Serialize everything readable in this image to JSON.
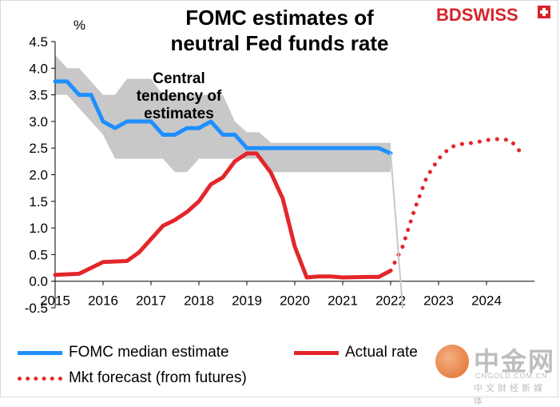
{
  "chart_data": {
    "type": "line",
    "title": "FOMC estimates of\nneutral Fed funds rate",
    "ylabel": "%",
    "ylim": [
      -0.5,
      4.5
    ],
    "yticks": [
      "-0.5",
      "0.0",
      "0.5",
      "1.0",
      "1.5",
      "2.0",
      "2.5",
      "3.0",
      "3.5",
      "4.0",
      "4.5"
    ],
    "xlim": [
      2015,
      2025
    ],
    "xticks": [
      "2015",
      "2016",
      "2017",
      "2018",
      "2019",
      "2020",
      "2021",
      "2022",
      "2023",
      "2024"
    ],
    "annotation": "Central\ntendency of\nestimates",
    "band": {
      "name": "Central tendency of estimates",
      "color": "#c8c8c8",
      "x": [
        2015.0,
        2015.25,
        2015.5,
        2015.75,
        2016.0,
        2016.25,
        2016.5,
        2016.75,
        2017.0,
        2017.25,
        2017.5,
        2017.75,
        2018.0,
        2018.25,
        2018.5,
        2018.75,
        2019.0,
        2019.25,
        2019.5,
        2022.0
      ],
      "upper": [
        4.25,
        4.0,
        4.0,
        3.75,
        3.5,
        3.5,
        3.8,
        3.8,
        3.8,
        3.5,
        3.5,
        3.5,
        3.5,
        3.5,
        3.5,
        3.0,
        2.8,
        2.8,
        2.6,
        2.6
      ],
      "lower": [
        3.5,
        3.5,
        3.25,
        3.0,
        2.75,
        2.3,
        2.3,
        2.3,
        2.3,
        2.3,
        2.05,
        2.05,
        2.3,
        2.3,
        2.3,
        2.3,
        2.3,
        2.3,
        2.05,
        2.05
      ]
    },
    "series": [
      {
        "name": "FOMC median estimate",
        "color": "#1f8fff",
        "style": "solid",
        "x": [
          2015.0,
          2015.25,
          2015.5,
          2015.75,
          2016.0,
          2016.25,
          2016.5,
          2016.75,
          2017.0,
          2017.25,
          2017.5,
          2017.75,
          2018.0,
          2018.25,
          2018.5,
          2018.75,
          2019.0,
          2019.25,
          2019.5,
          2021.75,
          2022.0
        ],
        "values": [
          3.75,
          3.75,
          3.5,
          3.5,
          3.0,
          2.875,
          3.0,
          3.0,
          3.0,
          2.75,
          2.75,
          2.875,
          2.875,
          3.0,
          2.75,
          2.75,
          2.5,
          2.5,
          2.5,
          2.5,
          2.4
        ]
      },
      {
        "name": "Actual rate",
        "color": "#e3262b",
        "style": "solid",
        "x": [
          2015.0,
          2015.5,
          2016.0,
          2016.5,
          2016.75,
          2017.0,
          2017.25,
          2017.5,
          2017.75,
          2018.0,
          2018.25,
          2018.5,
          2018.75,
          2019.0,
          2019.2,
          2019.5,
          2019.75,
          2020.0,
          2020.25,
          2020.5,
          2020.75,
          2021.0,
          2021.5,
          2021.75,
          2022.0
        ],
        "values": [
          0.12,
          0.14,
          0.36,
          0.38,
          0.54,
          0.79,
          1.04,
          1.15,
          1.3,
          1.5,
          1.82,
          1.95,
          2.25,
          2.4,
          2.4,
          2.04,
          1.55,
          0.65,
          0.07,
          0.09,
          0.09,
          0.07,
          0.08,
          0.08,
          0.2
        ]
      },
      {
        "name": "Mkt forecast (from futures)",
        "color": "#e3262b",
        "style": "dotted",
        "x": [
          2022.0,
          2022.25,
          2022.5,
          2022.75,
          2023.0,
          2023.25,
          2023.5,
          2023.75,
          2024.0,
          2024.25,
          2024.5,
          2024.75
        ],
        "values": [
          0.2,
          0.65,
          1.35,
          1.95,
          2.3,
          2.52,
          2.58,
          2.6,
          2.65,
          2.67,
          2.65,
          2.38
        ]
      },
      {
        "name": "",
        "color": "#c8c8c8",
        "style": "solid",
        "x": [
          2022.0,
          2022.25
        ],
        "values": [
          2.4,
          -0.5
        ]
      }
    ],
    "legend": [
      {
        "label": "FOMC median estimate",
        "color": "#1f8fff",
        "style": "solid"
      },
      {
        "label": "Actual rate",
        "color": "#e3262b",
        "style": "solid"
      },
      {
        "label": "Mkt forecast (from futures)",
        "color": "#e3262b",
        "style": "dotted"
      }
    ],
    "grid": false,
    "legend_position": "bottom"
  },
  "brand": {
    "logo_text": "BDSWISS",
    "logo_color": "#d7232a"
  },
  "watermark": {
    "main": "中金网",
    "sub": "CNGOLD.COM.CN",
    "sub2": "中文财经新媒体"
  }
}
